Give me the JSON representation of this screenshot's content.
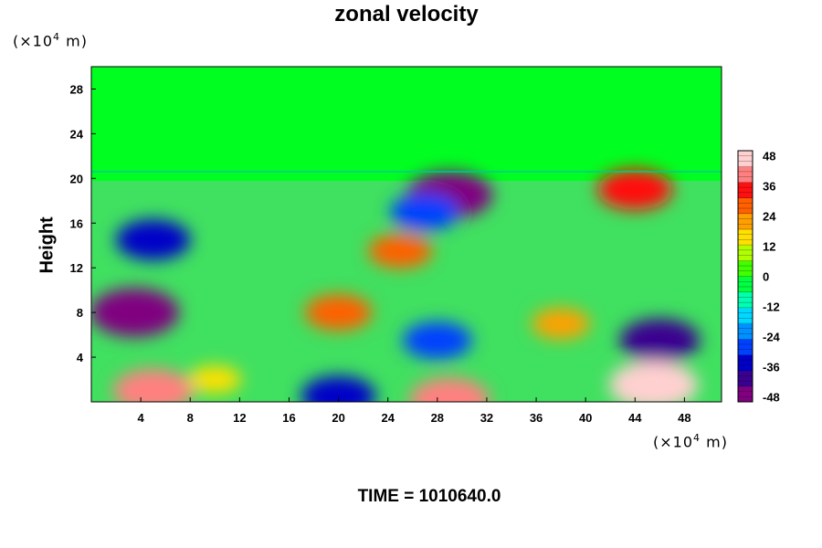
{
  "title": "zonal velocity",
  "ylabel": "Height",
  "y_unit": {
    "prefix": "(×10",
    "exp": "4",
    "suffix": " m)"
  },
  "x_unit": {
    "prefix": "(×10",
    "exp": "4",
    "suffix": " m)"
  },
  "time_label": "TIME = 1010640.0",
  "chart_data": {
    "type": "heatmap",
    "title": "zonal velocity",
    "xlabel": "",
    "ylabel": "Height",
    "xlim": [
      0,
      51
    ],
    "ylim": [
      0,
      30
    ],
    "x_ticks": [
      4,
      8,
      12,
      16,
      20,
      24,
      28,
      32,
      36,
      40,
      44,
      48
    ],
    "y_ticks": [
      4,
      8,
      12,
      16,
      20,
      24,
      28
    ],
    "colorbar": {
      "min": -50,
      "max": 50,
      "ticks": [
        48,
        36,
        24,
        12,
        0,
        -12,
        -24,
        -36,
        -48
      ],
      "colors": [
        "#800080",
        "#3a0090",
        "#0000c8",
        "#0040ff",
        "#0090ff",
        "#00d8ff",
        "#00ffb0",
        "#00ff40",
        "#40ff00",
        "#b0ff00",
        "#ffe000",
        "#ffa000",
        "#ff6000",
        "#ff1010",
        "#ff8080",
        "#ffd0d0"
      ]
    },
    "features": [
      {
        "x": 3.5,
        "y": 8.0,
        "value": -48
      },
      {
        "x": 5.0,
        "y": 1.0,
        "value": 40
      },
      {
        "x": 20.0,
        "y": 8.0,
        "value": 28
      },
      {
        "x": 29.0,
        "y": 18.5,
        "value": -45
      },
      {
        "x": 27.0,
        "y": 17.0,
        "value": -30
      },
      {
        "x": 46.0,
        "y": 5.5,
        "value": -40
      },
      {
        "x": 45.5,
        "y": 1.5,
        "value": 48
      },
      {
        "x": 29.0,
        "y": 0.2,
        "value": 40
      },
      {
        "x": 28.0,
        "y": 5.5,
        "value": -30
      },
      {
        "x": 20.0,
        "y": 0.5,
        "value": -35
      },
      {
        "x": 5.0,
        "y": 14.5,
        "value": -35
      },
      {
        "x": 44.0,
        "y": 19.0,
        "value": 35
      },
      {
        "x": 25.0,
        "y": 13.5,
        "value": 25
      },
      {
        "x": 38.0,
        "y": 7.0,
        "value": 20
      },
      {
        "x": 10.0,
        "y": 2.0,
        "value": 15
      }
    ]
  }
}
